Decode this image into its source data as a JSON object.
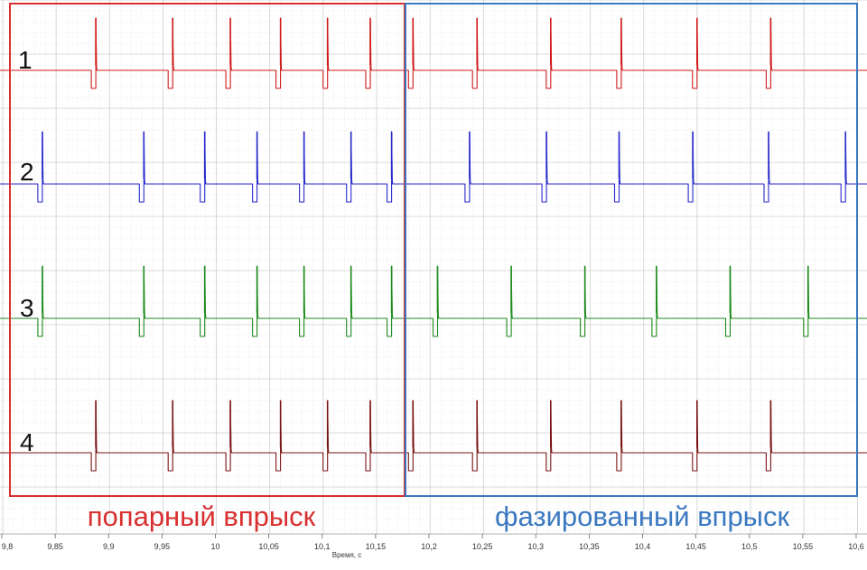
{
  "chart_data": {
    "type": "line",
    "xlabel": "Время, с",
    "xlim": [
      9.8,
      10.6
    ],
    "x_ticks": [
      "9,8",
      "9,85",
      "9,9",
      "9,95",
      "10",
      "10,05",
      "10,1",
      "10,15",
      "10,2",
      "10,25",
      "10,3",
      "10,35",
      "10,4",
      "10,45",
      "10,5",
      "10,55",
      "10,6"
    ],
    "grid": true,
    "series": [
      {
        "name": "1",
        "color": "#d11a1a",
        "pulses_s": [
          9.888,
          9.96,
          10.014,
          10.061,
          10.105,
          10.145,
          10.185,
          10.245,
          10.314,
          10.38,
          10.451,
          10.52
        ]
      },
      {
        "name": "2",
        "color": "#2a2acc",
        "pulses_s": [
          9.838,
          9.933,
          9.99,
          10.039,
          10.083,
          10.127,
          10.165,
          10.238,
          10.31,
          10.378,
          10.447,
          10.518,
          10.59
        ]
      },
      {
        "name": "3",
        "color": "#1c8a1c",
        "pulses_s": [
          9.838,
          9.933,
          9.99,
          10.039,
          10.083,
          10.127,
          10.165,
          10.208,
          10.277,
          10.346,
          10.413,
          10.482,
          10.555
        ]
      },
      {
        "name": "4",
        "color": "#7a1414",
        "pulses_s": [
          9.888,
          9.96,
          10.014,
          10.061,
          10.105,
          10.145,
          10.185,
          10.245,
          10.314,
          10.38,
          10.451,
          10.52
        ]
      }
    ],
    "regions": [
      {
        "label": "попарный впрыск",
        "x_range": [
          9.806,
          10.18
        ],
        "color": "#d83030"
      },
      {
        "label": "фазированный впрыск",
        "x_range": [
          10.18,
          10.6
        ],
        "color": "#3a78c0"
      }
    ]
  }
}
